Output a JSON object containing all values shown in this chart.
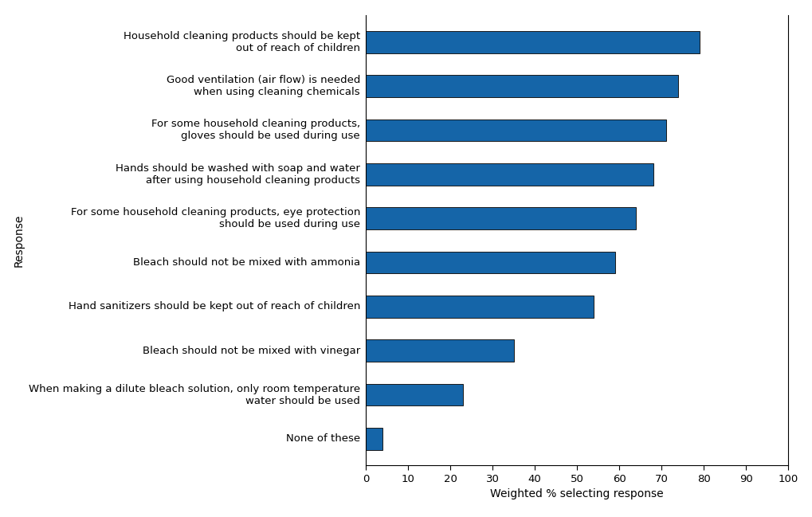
{
  "categories": [
    "Household cleaning products should be kept\nout of reach of children",
    "Good ventilation (air flow) is needed\nwhen using cleaning chemicals",
    "For some household cleaning products,\ngloves should be used during use",
    "Hands should be washed with soap and water\nafter using household cleaning products",
    "For some household cleaning products, eye protection\nshould be used during use",
    "Bleach should not be mixed with ammonia",
    "Hand sanitizers should be kept out of reach of children",
    "Bleach should not be mixed with vinegar",
    "When making a dilute bleach solution, only room temperature\nwater should be used",
    "None of these"
  ],
  "values": [
    79,
    74,
    71,
    68,
    64,
    59,
    54,
    35,
    23,
    4
  ],
  "bar_color": "#1565a8",
  "bar_edgecolor": "#1a1a1a",
  "xlabel": "Weighted % selecting response",
  "ylabel": "Response",
  "xlim": [
    0,
    100
  ],
  "xticks": [
    0,
    10,
    20,
    30,
    40,
    50,
    60,
    70,
    80,
    90,
    100
  ],
  "background_color": "#ffffff",
  "label_fontsize": 9.5,
  "axis_label_fontsize": 10,
  "tick_fontsize": 9.5,
  "bar_height": 0.5
}
